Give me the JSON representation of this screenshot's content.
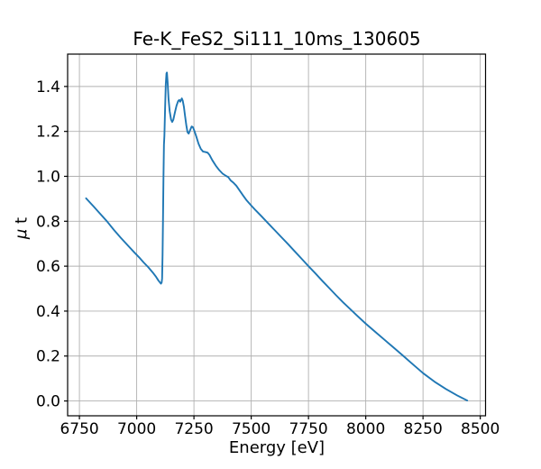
{
  "figure": {
    "background": "#ffffff"
  },
  "chart_data": {
    "type": "line",
    "title": "Fe-K_FeS2_Si111_10ms_130605",
    "xlabel": "Energy [eV]",
    "ylabel": "μ t",
    "xlim": [
      6698.5,
      8523
    ],
    "ylim": [
      -0.066,
      1.544
    ],
    "xticks": [
      6750,
      7000,
      7250,
      7500,
      7750,
      8000,
      8250,
      8500
    ],
    "ytick_labels": [
      "0.0",
      "0.2",
      "0.4",
      "0.6",
      "0.8",
      "1.0",
      "1.2",
      "1.4"
    ],
    "grid": true,
    "legend_position": "none",
    "colors": {
      "line": "#1f77b4",
      "grid": "#b0b0b0",
      "spine": "#000000",
      "text": "#000000"
    },
    "series": [
      {
        "name": "mu_t_spectrum",
        "points": [
          [
            6779,
            0.902
          ],
          [
            6810,
            0.868
          ],
          [
            6840,
            0.834
          ],
          [
            6870,
            0.8
          ],
          [
            6900,
            0.762
          ],
          [
            6930,
            0.727
          ],
          [
            6960,
            0.694
          ],
          [
            6990,
            0.661
          ],
          [
            7010,
            0.64
          ],
          [
            7030,
            0.617
          ],
          [
            7050,
            0.596
          ],
          [
            7070,
            0.572
          ],
          [
            7085,
            0.552
          ],
          [
            7095,
            0.536
          ],
          [
            7102,
            0.527
          ],
          [
            7106,
            0.522
          ],
          [
            7109,
            0.527
          ],
          [
            7111,
            0.545
          ],
          [
            7113,
            0.65
          ],
          [
            7115,
            0.82
          ],
          [
            7117,
            1.0
          ],
          [
            7119,
            1.14
          ],
          [
            7121,
            1.18
          ],
          [
            7124,
            1.3
          ],
          [
            7127,
            1.41
          ],
          [
            7130,
            1.458
          ],
          [
            7132,
            1.462
          ],
          [
            7135,
            1.42
          ],
          [
            7139,
            1.345
          ],
          [
            7144,
            1.29
          ],
          [
            7150,
            1.253
          ],
          [
            7155,
            1.242
          ],
          [
            7160,
            1.252
          ],
          [
            7167,
            1.285
          ],
          [
            7174,
            1.315
          ],
          [
            7181,
            1.335
          ],
          [
            7186,
            1.34
          ],
          [
            7190,
            1.332
          ],
          [
            7194,
            1.34
          ],
          [
            7197,
            1.347
          ],
          [
            7201,
            1.337
          ],
          [
            7206,
            1.31
          ],
          [
            7211,
            1.27
          ],
          [
            7217,
            1.225
          ],
          [
            7222,
            1.196
          ],
          [
            7227,
            1.19
          ],
          [
            7233,
            1.205
          ],
          [
            7240,
            1.222
          ],
          [
            7246,
            1.218
          ],
          [
            7252,
            1.202
          ],
          [
            7260,
            1.178
          ],
          [
            7270,
            1.145
          ],
          [
            7280,
            1.122
          ],
          [
            7290,
            1.11
          ],
          [
            7300,
            1.108
          ],
          [
            7310,
            1.105
          ],
          [
            7318,
            1.095
          ],
          [
            7330,
            1.072
          ],
          [
            7345,
            1.048
          ],
          [
            7360,
            1.028
          ],
          [
            7375,
            1.012
          ],
          [
            7390,
            1.002
          ],
          [
            7400,
            0.996
          ],
          [
            7410,
            0.982
          ],
          [
            7422,
            0.972
          ],
          [
            7435,
            0.958
          ],
          [
            7450,
            0.936
          ],
          [
            7465,
            0.914
          ],
          [
            7480,
            0.893
          ],
          [
            7500,
            0.87
          ],
          [
            7520,
            0.848
          ],
          [
            7545,
            0.822
          ],
          [
            7570,
            0.795
          ],
          [
            7600,
            0.763
          ],
          [
            7630,
            0.731
          ],
          [
            7660,
            0.699
          ],
          [
            7690,
            0.666
          ],
          [
            7720,
            0.633
          ],
          [
            7750,
            0.6
          ],
          [
            7780,
            0.568
          ],
          [
            7810,
            0.535
          ],
          [
            7840,
            0.503
          ],
          [
            7870,
            0.471
          ],
          [
            7900,
            0.44
          ],
          [
            7930,
            0.411
          ],
          [
            7960,
            0.382
          ],
          [
            8000,
            0.344
          ],
          [
            8040,
            0.309
          ],
          [
            8080,
            0.274
          ],
          [
            8120,
            0.239
          ],
          [
            8160,
            0.204
          ],
          [
            8200,
            0.168
          ],
          [
            8250,
            0.124
          ],
          [
            8300,
            0.086
          ],
          [
            8350,
            0.053
          ],
          [
            8400,
            0.024
          ],
          [
            8443,
            0.002
          ]
        ]
      }
    ]
  }
}
